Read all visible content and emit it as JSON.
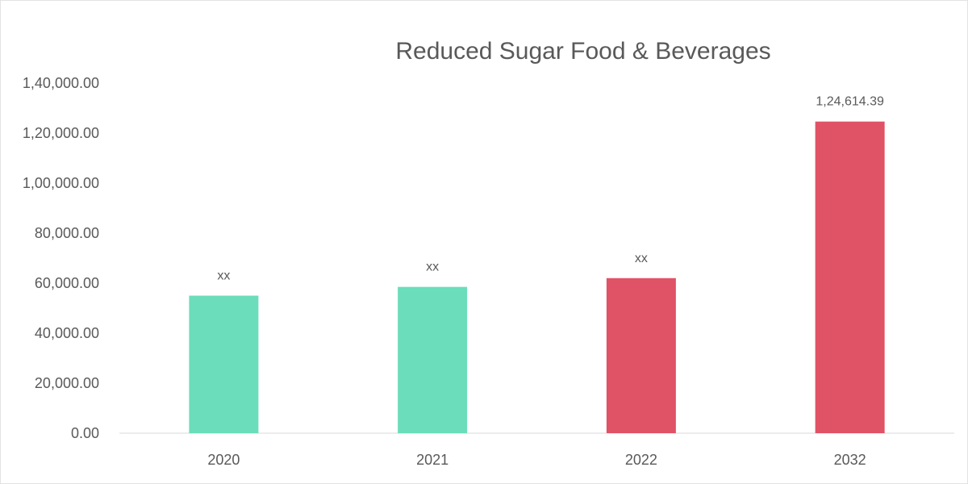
{
  "chart_data": {
    "type": "bar",
    "title": "Reduced Sugar Food & Beverages",
    "xlabel": "",
    "ylabel": "",
    "categories": [
      "2020",
      "2021",
      "2022",
      "2032"
    ],
    "values": [
      55000,
      58500,
      62000,
      124614.39
    ],
    "data_labels": [
      "xx",
      "xx",
      "xx",
      "1,24,614.39"
    ],
    "bar_colors": [
      "#6BDDBA",
      "#6BDDBA",
      "#E05266",
      "#E05266"
    ],
    "ylim": [
      0,
      140000
    ],
    "y_ticks": [
      0,
      20000,
      40000,
      60000,
      80000,
      100000,
      120000,
      140000
    ],
    "y_tick_labels": [
      "0.00",
      "20,000.00",
      "40,000.00",
      "60,000.00",
      "80,000.00",
      "1,00,000.00",
      "1,20,000.00",
      "1,40,000.00"
    ],
    "grid": false,
    "legend": "none"
  }
}
